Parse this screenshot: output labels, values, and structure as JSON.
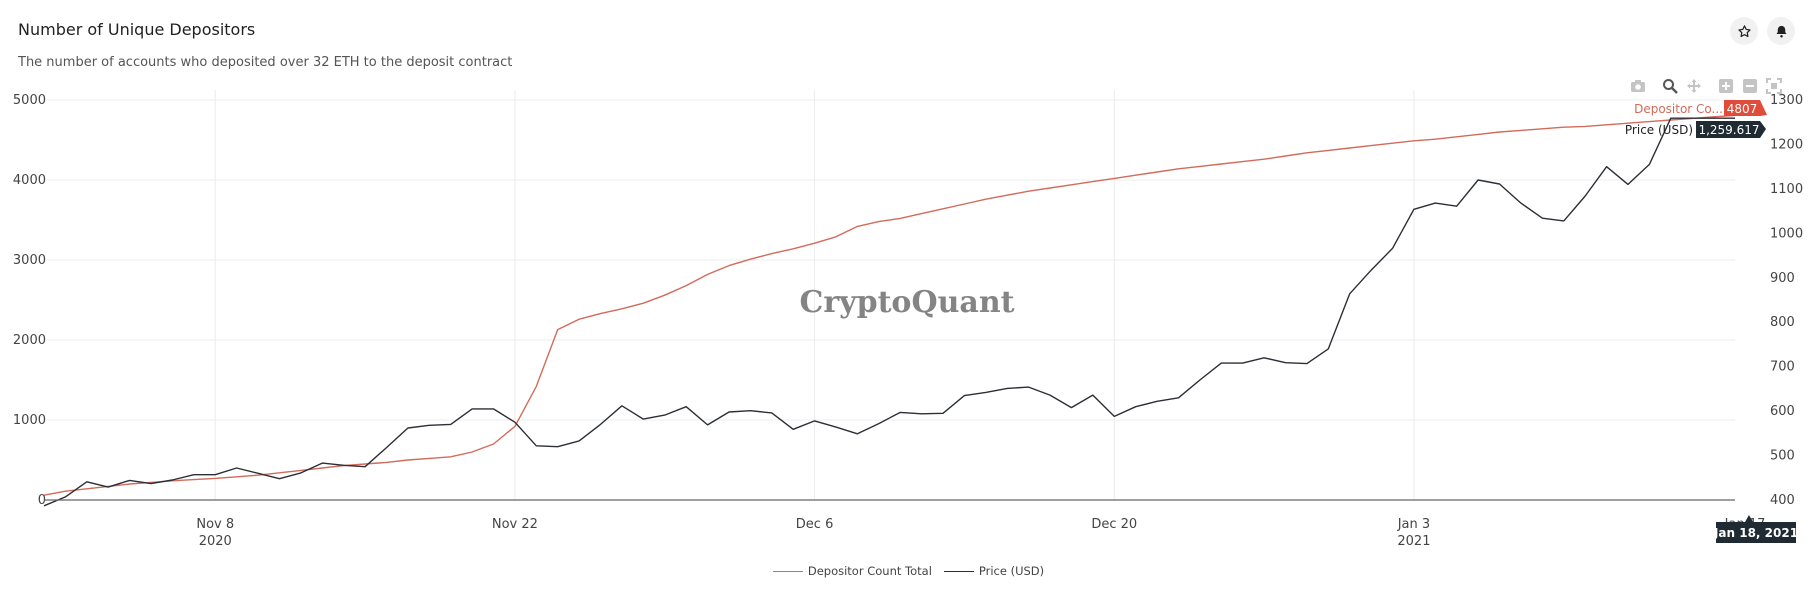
{
  "header": {
    "title": "Number of Unique Depositors",
    "subtitle": "The number of accounts who deposited over 32 ETH to the deposit contract",
    "star_icon": "star-icon",
    "bell_icon": "bell-icon"
  },
  "modebar": [
    "camera-icon",
    "zoom-icon",
    "pan-icon",
    "zoom-in-icon",
    "zoom-out-icon",
    "autoscale-icon"
  ],
  "watermark": "CryptoQuant",
  "hover": {
    "depositor_label": "Depositor Co...",
    "depositor_value": "4807",
    "price_label": "Price (USD)",
    "price_value": "1,259.617",
    "date_label": "Jan 18, 2021",
    "partial_tick": "Jan 17"
  },
  "colors": {
    "depositor": "#d26b5b",
    "price": "#2b2f36",
    "hover_red": "#e04b3a",
    "hover_dark": "#1f2a33"
  },
  "chart_data": {
    "type": "line",
    "x_range": [
      "2020-10-31",
      "2021-01-18"
    ],
    "y_left_range": [
      0,
      5000
    ],
    "y_right_range": [
      400,
      1300
    ],
    "grid": true,
    "legend_placement": "bottom-center",
    "x_ticks": [
      {
        "date": "2020-11-08",
        "line1": "Nov 8",
        "line2": "2020"
      },
      {
        "date": "2020-11-22",
        "line1": "Nov 22",
        "line2": ""
      },
      {
        "date": "2020-12-06",
        "line1": "Dec 6",
        "line2": ""
      },
      {
        "date": "2020-12-20",
        "line1": "Dec 20",
        "line2": ""
      },
      {
        "date": "2021-01-03",
        "line1": "Jan 3",
        "line2": "2021"
      }
    ],
    "y_left_ticks": [
      0,
      1000,
      2000,
      3000,
      4000,
      5000
    ],
    "y_right_ticks": [
      400,
      500,
      600,
      700,
      800,
      900,
      1000,
      1100,
      1200,
      1300
    ],
    "series": [
      {
        "name": "Depositor Count Total",
        "axis": "left",
        "x": [
          "2020-10-31",
          "2020-11-01",
          "2020-11-02",
          "2020-11-03",
          "2020-11-04",
          "2020-11-05",
          "2020-11-06",
          "2020-11-07",
          "2020-11-08",
          "2020-11-09",
          "2020-11-10",
          "2020-11-11",
          "2020-11-12",
          "2020-11-13",
          "2020-11-14",
          "2020-11-15",
          "2020-11-16",
          "2020-11-17",
          "2020-11-18",
          "2020-11-19",
          "2020-11-20",
          "2020-11-21",
          "2020-11-22",
          "2020-11-23",
          "2020-11-24",
          "2020-11-25",
          "2020-11-26",
          "2020-11-27",
          "2020-11-28",
          "2020-11-29",
          "2020-11-30",
          "2020-12-01",
          "2020-12-02",
          "2020-12-03",
          "2020-12-04",
          "2020-12-05",
          "2020-12-06",
          "2020-12-07",
          "2020-12-08",
          "2020-12-09",
          "2020-12-10",
          "2020-12-11",
          "2020-12-12",
          "2020-12-13",
          "2020-12-14",
          "2020-12-15",
          "2020-12-16",
          "2020-12-17",
          "2020-12-18",
          "2020-12-19",
          "2020-12-20",
          "2020-12-21",
          "2020-12-22",
          "2020-12-23",
          "2020-12-24",
          "2020-12-25",
          "2020-12-26",
          "2020-12-27",
          "2020-12-28",
          "2020-12-29",
          "2020-12-30",
          "2020-12-31",
          "2021-01-01",
          "2021-01-02",
          "2021-01-03",
          "2021-01-04",
          "2021-01-05",
          "2021-01-06",
          "2021-01-07",
          "2021-01-08",
          "2021-01-09",
          "2021-01-10",
          "2021-01-11",
          "2021-01-12",
          "2021-01-13",
          "2021-01-14",
          "2021-01-15",
          "2021-01-16",
          "2021-01-17",
          "2021-01-18"
        ],
        "values": [
          60,
          110,
          140,
          170,
          200,
          220,
          240,
          255,
          270,
          290,
          310,
          340,
          370,
          400,
          430,
          450,
          470,
          500,
          520,
          540,
          600,
          700,
          920,
          1420,
          2130,
          2260,
          2330,
          2390,
          2460,
          2560,
          2680,
          2820,
          2930,
          3010,
          3080,
          3140,
          3210,
          3290,
          3420,
          3480,
          3520,
          3580,
          3640,
          3700,
          3760,
          3810,
          3860,
          3900,
          3940,
          3980,
          4020,
          4060,
          4100,
          4140,
          4170,
          4200,
          4230,
          4260,
          4300,
          4340,
          4370,
          4400,
          4430,
          4460,
          4490,
          4510,
          4540,
          4570,
          4600,
          4620,
          4640,
          4660,
          4670,
          4690,
          4710,
          4730,
          4750,
          4770,
          4790,
          4807
        ]
      },
      {
        "name": "Price (USD)",
        "axis": "right",
        "x": [
          "2020-10-31",
          "2020-11-01",
          "2020-11-02",
          "2020-11-03",
          "2020-11-04",
          "2020-11-05",
          "2020-11-06",
          "2020-11-07",
          "2020-11-08",
          "2020-11-09",
          "2020-11-10",
          "2020-11-11",
          "2020-11-12",
          "2020-11-13",
          "2020-11-14",
          "2020-11-15",
          "2020-11-16",
          "2020-11-17",
          "2020-11-18",
          "2020-11-19",
          "2020-11-20",
          "2020-11-21",
          "2020-11-22",
          "2020-11-23",
          "2020-11-24",
          "2020-11-25",
          "2020-11-26",
          "2020-11-27",
          "2020-11-28",
          "2020-11-29",
          "2020-11-30",
          "2020-12-01",
          "2020-12-02",
          "2020-12-03",
          "2020-12-04",
          "2020-12-05",
          "2020-12-06",
          "2020-12-07",
          "2020-12-08",
          "2020-12-09",
          "2020-12-10",
          "2020-12-11",
          "2020-12-12",
          "2020-12-13",
          "2020-12-14",
          "2020-12-15",
          "2020-12-16",
          "2020-12-17",
          "2020-12-18",
          "2020-12-19",
          "2020-12-20",
          "2020-12-21",
          "2020-12-22",
          "2020-12-23",
          "2020-12-24",
          "2020-12-25",
          "2020-12-26",
          "2020-12-27",
          "2020-12-28",
          "2020-12-29",
          "2020-12-30",
          "2020-12-31",
          "2021-01-01",
          "2021-01-02",
          "2021-01-03",
          "2021-01-04",
          "2021-01-05",
          "2021-01-06",
          "2021-01-07",
          "2021-01-08",
          "2021-01-09",
          "2021-01-10",
          "2021-01-11",
          "2021-01-12",
          "2021-01-13",
          "2021-01-14",
          "2021-01-15",
          "2021-01-16",
          "2021-01-17",
          "2021-01-18"
        ],
        "values": [
          387,
          407,
          441,
          429,
          444,
          437,
          445,
          457,
          457,
          472,
          460,
          448,
          461,
          483,
          478,
          475,
          518,
          562,
          568,
          570,
          605,
          605,
          575,
          522,
          520,
          533,
          570,
          612,
          582,
          591,
          610,
          569,
          598,
          601,
          596,
          559,
          578,
          564,
          549,
          572,
          597,
          594,
          595,
          635,
          642,
          651,
          654,
          636,
          608,
          636,
          588,
          610,
          622,
          630,
          670,
          708,
          708,
          720,
          709,
          707,
          740,
          864,
          917,
          966,
          1054,
          1068,
          1061,
          1120,
          1111,
          1068,
          1034,
          1028,
          1084,
          1150,
          1110,
          1155,
          1259,
          1259,
          1259,
          1259
        ]
      }
    ]
  }
}
